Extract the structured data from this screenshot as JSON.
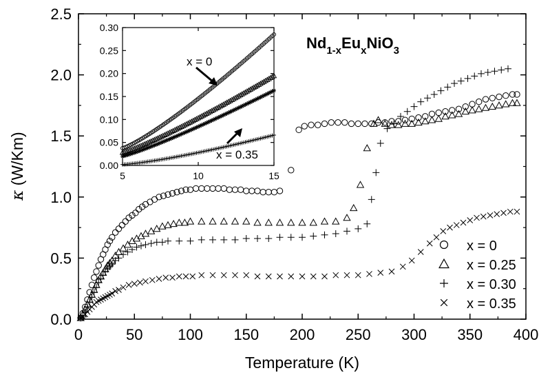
{
  "chart_data": {
    "type": "scatter",
    "xlabel": "Temperature (K)",
    "ylabel_symbol": "κ",
    "ylabel_unit": " (W/Km)",
    "xlim": [
      0,
      400
    ],
    "ylim": [
      0,
      2.5
    ],
    "xticks": [
      "0",
      "50",
      "100",
      "150",
      "200",
      "250",
      "300",
      "350",
      "400"
    ],
    "yticks": [
      "0.0",
      "0.5",
      "1.0",
      "1.5",
      "2.0",
      "2.5"
    ],
    "formula": {
      "p1": "Nd",
      "s1": "1-x",
      "p2": "Eu",
      "s2": "x",
      "p3": "NiO",
      "s3": "3"
    },
    "legend_position": "bottom-right",
    "series": [
      {
        "name": "x = 0",
        "marker": "circle",
        "points": [
          [
            2,
            0.01
          ],
          [
            4,
            0.05
          ],
          [
            6,
            0.1
          ],
          [
            8,
            0.16
          ],
          [
            10,
            0.22
          ],
          [
            12,
            0.28
          ],
          [
            14,
            0.34
          ],
          [
            16,
            0.39
          ],
          [
            18,
            0.44
          ],
          [
            20,
            0.49
          ],
          [
            22,
            0.53
          ],
          [
            24,
            0.57
          ],
          [
            26,
            0.61
          ],
          [
            28,
            0.64
          ],
          [
            30,
            0.67
          ],
          [
            33,
            0.71
          ],
          [
            36,
            0.74
          ],
          [
            39,
            0.77
          ],
          [
            42,
            0.8
          ],
          [
            45,
            0.83
          ],
          [
            48,
            0.85
          ],
          [
            51,
            0.87
          ],
          [
            54,
            0.9
          ],
          [
            57,
            0.92
          ],
          [
            60,
            0.94
          ],
          [
            64,
            0.96
          ],
          [
            68,
            0.98
          ],
          [
            72,
            1.0
          ],
          [
            76,
            1.01
          ],
          [
            80,
            1.02
          ],
          [
            84,
            1.03
          ],
          [
            88,
            1.04
          ],
          [
            92,
            1.05
          ],
          [
            96,
            1.06
          ],
          [
            100,
            1.06
          ],
          [
            105,
            1.07
          ],
          [
            110,
            1.07
          ],
          [
            115,
            1.07
          ],
          [
            120,
            1.07
          ],
          [
            125,
            1.07
          ],
          [
            130,
            1.07
          ],
          [
            135,
            1.06
          ],
          [
            140,
            1.06
          ],
          [
            145,
            1.06
          ],
          [
            150,
            1.05
          ],
          [
            155,
            1.05
          ],
          [
            160,
            1.05
          ],
          [
            165,
            1.04
          ],
          [
            170,
            1.04
          ],
          [
            175,
            1.04
          ],
          [
            180,
            1.05
          ],
          [
            190,
            1.22
          ],
          [
            197,
            1.55
          ],
          [
            202,
            1.58
          ],
          [
            208,
            1.59
          ],
          [
            214,
            1.59
          ],
          [
            220,
            1.6
          ],
          [
            226,
            1.61
          ],
          [
            232,
            1.61
          ],
          [
            238,
            1.61
          ],
          [
            244,
            1.6
          ],
          [
            250,
            1.6
          ],
          [
            256,
            1.6
          ],
          [
            262,
            1.6
          ],
          [
            268,
            1.61
          ],
          [
            274,
            1.61
          ],
          [
            280,
            1.62
          ],
          [
            286,
            1.62
          ],
          [
            292,
            1.63
          ],
          [
            298,
            1.64
          ],
          [
            304,
            1.65
          ],
          [
            310,
            1.66
          ],
          [
            316,
            1.68
          ],
          [
            322,
            1.69
          ],
          [
            328,
            1.7
          ],
          [
            334,
            1.71
          ],
          [
            340,
            1.72
          ],
          [
            346,
            1.74
          ],
          [
            352,
            1.76
          ],
          [
            358,
            1.78
          ],
          [
            364,
            1.8
          ],
          [
            370,
            1.81
          ],
          [
            376,
            1.82
          ],
          [
            382,
            1.83
          ],
          [
            388,
            1.84
          ],
          [
            392,
            1.84
          ]
        ]
      },
      {
        "name": "x = 0.25",
        "marker": "triangle",
        "points": [
          [
            2,
            0.01
          ],
          [
            4,
            0.04
          ],
          [
            6,
            0.08
          ],
          [
            8,
            0.12
          ],
          [
            10,
            0.16
          ],
          [
            12,
            0.2
          ],
          [
            14,
            0.24
          ],
          [
            16,
            0.28
          ],
          [
            18,
            0.32
          ],
          [
            20,
            0.35
          ],
          [
            22,
            0.38
          ],
          [
            24,
            0.41
          ],
          [
            26,
            0.44
          ],
          [
            28,
            0.46
          ],
          [
            30,
            0.48
          ],
          [
            33,
            0.52
          ],
          [
            36,
            0.55
          ],
          [
            40,
            0.58
          ],
          [
            44,
            0.61
          ],
          [
            48,
            0.64
          ],
          [
            52,
            0.66
          ],
          [
            56,
            0.68
          ],
          [
            60,
            0.7
          ],
          [
            65,
            0.72
          ],
          [
            70,
            0.74
          ],
          [
            75,
            0.76
          ],
          [
            80,
            0.77
          ],
          [
            85,
            0.78
          ],
          [
            90,
            0.79
          ],
          [
            95,
            0.79
          ],
          [
            100,
            0.8
          ],
          [
            110,
            0.8
          ],
          [
            120,
            0.8
          ],
          [
            130,
            0.8
          ],
          [
            140,
            0.8
          ],
          [
            150,
            0.8
          ],
          [
            160,
            0.79
          ],
          [
            170,
            0.79
          ],
          [
            180,
            0.79
          ],
          [
            190,
            0.79
          ],
          [
            200,
            0.79
          ],
          [
            210,
            0.79
          ],
          [
            220,
            0.8
          ],
          [
            230,
            0.8
          ],
          [
            240,
            0.83
          ],
          [
            246,
            0.91
          ],
          [
            252,
            1.1
          ],
          [
            258,
            1.4
          ],
          [
            264,
            1.6
          ],
          [
            268,
            1.63
          ],
          [
            274,
            1.6
          ],
          [
            280,
            1.59
          ],
          [
            286,
            1.59
          ],
          [
            292,
            1.6
          ],
          [
            298,
            1.6
          ],
          [
            304,
            1.61
          ],
          [
            310,
            1.62
          ],
          [
            316,
            1.63
          ],
          [
            322,
            1.64
          ],
          [
            328,
            1.66
          ],
          [
            334,
            1.67
          ],
          [
            340,
            1.68
          ],
          [
            346,
            1.7
          ],
          [
            352,
            1.71
          ],
          [
            358,
            1.72
          ],
          [
            364,
            1.73
          ],
          [
            370,
            1.74
          ],
          [
            376,
            1.75
          ],
          [
            382,
            1.76
          ],
          [
            388,
            1.77
          ],
          [
            392,
            1.77
          ]
        ]
      },
      {
        "name": "x = 0.30",
        "marker": "plus",
        "points": [
          [
            2,
            0.01
          ],
          [
            4,
            0.03
          ],
          [
            6,
            0.06
          ],
          [
            8,
            0.1
          ],
          [
            10,
            0.14
          ],
          [
            12,
            0.18
          ],
          [
            14,
            0.22
          ],
          [
            16,
            0.26
          ],
          [
            18,
            0.3
          ],
          [
            20,
            0.33
          ],
          [
            22,
            0.36
          ],
          [
            24,
            0.39
          ],
          [
            26,
            0.41
          ],
          [
            28,
            0.43
          ],
          [
            30,
            0.45
          ],
          [
            33,
            0.48
          ],
          [
            36,
            0.5
          ],
          [
            40,
            0.53
          ],
          [
            44,
            0.55
          ],
          [
            48,
            0.57
          ],
          [
            52,
            0.59
          ],
          [
            56,
            0.6
          ],
          [
            60,
            0.61
          ],
          [
            65,
            0.62
          ],
          [
            70,
            0.63
          ],
          [
            75,
            0.63
          ],
          [
            80,
            0.64
          ],
          [
            90,
            0.64
          ],
          [
            100,
            0.64
          ],
          [
            110,
            0.65
          ],
          [
            120,
            0.65
          ],
          [
            130,
            0.65
          ],
          [
            140,
            0.65
          ],
          [
            150,
            0.66
          ],
          [
            160,
            0.66
          ],
          [
            170,
            0.66
          ],
          [
            180,
            0.67
          ],
          [
            190,
            0.67
          ],
          [
            200,
            0.67
          ],
          [
            210,
            0.68
          ],
          [
            220,
            0.69
          ],
          [
            230,
            0.7
          ],
          [
            240,
            0.72
          ],
          [
            250,
            0.74
          ],
          [
            258,
            0.78
          ],
          [
            262,
            0.98
          ],
          [
            266,
            1.2
          ],
          [
            270,
            1.44
          ],
          [
            276,
            1.56
          ],
          [
            282,
            1.6
          ],
          [
            288,
            1.66
          ],
          [
            294,
            1.7
          ],
          [
            300,
            1.74
          ],
          [
            306,
            1.78
          ],
          [
            312,
            1.81
          ],
          [
            318,
            1.84
          ],
          [
            324,
            1.87
          ],
          [
            330,
            1.9
          ],
          [
            336,
            1.93
          ],
          [
            342,
            1.95
          ],
          [
            348,
            1.97
          ],
          [
            354,
            1.99
          ],
          [
            360,
            2.01
          ],
          [
            366,
            2.02
          ],
          [
            372,
            2.03
          ],
          [
            378,
            2.04
          ],
          [
            384,
            2.05
          ]
        ]
      },
      {
        "name": "x = 0.35",
        "marker": "cross",
        "points": [
          [
            2,
            0.01
          ],
          [
            4,
            0.02
          ],
          [
            6,
            0.04
          ],
          [
            8,
            0.06
          ],
          [
            10,
            0.08
          ],
          [
            12,
            0.1
          ],
          [
            14,
            0.12
          ],
          [
            16,
            0.14
          ],
          [
            18,
            0.15
          ],
          [
            20,
            0.16
          ],
          [
            22,
            0.17
          ],
          [
            24,
            0.18
          ],
          [
            26,
            0.19
          ],
          [
            28,
            0.2
          ],
          [
            30,
            0.21
          ],
          [
            33,
            0.23
          ],
          [
            36,
            0.24
          ],
          [
            40,
            0.26
          ],
          [
            45,
            0.28
          ],
          [
            50,
            0.29
          ],
          [
            55,
            0.3
          ],
          [
            60,
            0.31
          ],
          [
            66,
            0.32
          ],
          [
            72,
            0.33
          ],
          [
            78,
            0.34
          ],
          [
            84,
            0.34
          ],
          [
            90,
            0.35
          ],
          [
            96,
            0.35
          ],
          [
            102,
            0.35
          ],
          [
            110,
            0.36
          ],
          [
            120,
            0.36
          ],
          [
            130,
            0.36
          ],
          [
            140,
            0.36
          ],
          [
            150,
            0.36
          ],
          [
            160,
            0.35
          ],
          [
            170,
            0.35
          ],
          [
            180,
            0.35
          ],
          [
            190,
            0.35
          ],
          [
            200,
            0.35
          ],
          [
            210,
            0.35
          ],
          [
            220,
            0.35
          ],
          [
            230,
            0.36
          ],
          [
            240,
            0.36
          ],
          [
            250,
            0.36
          ],
          [
            260,
            0.37
          ],
          [
            270,
            0.38
          ],
          [
            280,
            0.39
          ],
          [
            290,
            0.43
          ],
          [
            298,
            0.48
          ],
          [
            306,
            0.55
          ],
          [
            314,
            0.62
          ],
          [
            320,
            0.67
          ],
          [
            326,
            0.72
          ],
          [
            332,
            0.75
          ],
          [
            338,
            0.77
          ],
          [
            344,
            0.79
          ],
          [
            350,
            0.81
          ],
          [
            356,
            0.83
          ],
          [
            362,
            0.84
          ],
          [
            368,
            0.85
          ],
          [
            374,
            0.86
          ],
          [
            380,
            0.87
          ],
          [
            386,
            0.88
          ],
          [
            392,
            0.88
          ]
        ]
      }
    ],
    "inset": {
      "xlim": [
        5,
        15
      ],
      "ylim": [
        0,
        0.3
      ],
      "xticks": [
        "5",
        "10",
        "15"
      ],
      "yticks": [
        "0.00",
        "0.05",
        "0.10",
        "0.15",
        "0.20",
        "0.25",
        "0.30"
      ],
      "annotations": [
        {
          "text": "x = 0"
        },
        {
          "text": "x = 0.35"
        }
      ],
      "series": [
        {
          "name": "x = 0",
          "marker": "circle",
          "a": 0.0375,
          "b": 0.285,
          "p": 1.2
        },
        {
          "name": "x = 0.25",
          "marker": "triangle",
          "a": 0.028,
          "b": 0.195,
          "p": 1.15
        },
        {
          "name": "x = 0.30",
          "marker": "star",
          "a": 0.02,
          "b": 0.163,
          "p": 1.15
        },
        {
          "name": "x = 0.35",
          "marker": "plus",
          "a": 0.002,
          "b": 0.066,
          "p": 1.3
        }
      ]
    }
  }
}
